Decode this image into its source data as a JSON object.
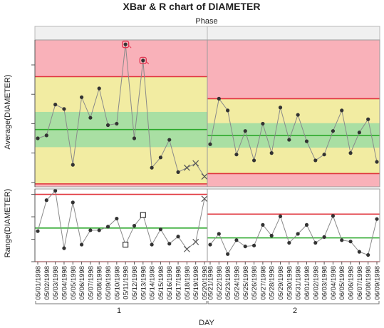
{
  "chart_data": {
    "type": "line",
    "title": "XBar & R chart of DIAMETER",
    "phase_label": "Phase",
    "xlabel": "DAY",
    "phases": [
      {
        "name": "1",
        "dates": [
          "05/01/1998",
          "05/02/1998",
          "05/03/1998",
          "05/04/1998",
          "05/05/1998",
          "05/06/1998",
          "05/07/1998",
          "05/08/1998",
          "05/09/1998",
          "05/10/1998",
          "05/11/1998",
          "05/12/1998",
          "05/13/1998",
          "05/14/1998",
          "05/15/1998",
          "05/16/1998",
          "05/17/1998",
          "05/18/1998",
          "05/19/1998",
          "05/20/1998"
        ],
        "xbar": [
          4.3,
          4.32,
          4.53,
          4.5,
          4.12,
          4.58,
          4.44,
          4.64,
          4.39,
          4.4,
          4.94,
          4.3,
          4.83,
          4.1,
          4.17,
          4.29,
          4.07,
          4.1,
          4.13,
          4.04
        ],
        "xbar_markers": [
          "dot",
          "dot",
          "dot",
          "dot",
          "dot",
          "dot",
          "dot",
          "dot",
          "dot",
          "dot",
          "flag",
          "dot",
          "flag",
          "dot",
          "dot",
          "dot",
          "dot",
          "x",
          "x",
          "x"
        ],
        "range": [
          0.68,
          1.37,
          1.58,
          0.3,
          1.32,
          0.38,
          0.7,
          0.7,
          0.78,
          0.96,
          0.38,
          0.8,
          1.04,
          0.38,
          0.72,
          0.4,
          0.56,
          0.28,
          0.44,
          1.4
        ],
        "range_markers": [
          "dot",
          "dot",
          "dot",
          "dot",
          "dot",
          "dot",
          "dot",
          "dot",
          "dot",
          "dot",
          "square",
          "dot",
          "square",
          "dot",
          "dot",
          "dot",
          "dot",
          "x",
          "x",
          "x"
        ],
        "xbar_limits": {
          "lcl": 3.99,
          "center": 4.36,
          "ucl": 4.72
        },
        "range_limits": {
          "lcl": 0,
          "center": 0.75,
          "ucl": 1.5
        }
      },
      {
        "name": "2",
        "dates": [
          "05/21/1998",
          "05/22/1998",
          "05/23/1998",
          "05/24/1998",
          "05/25/1998",
          "05/26/1998",
          "05/27/1998",
          "05/28/1998",
          "05/29/1998",
          "05/30/1998",
          "05/31/1998",
          "06/01/1998",
          "06/02/1998",
          "06/03/1998",
          "06/04/1998",
          "06/05/1998",
          "06/06/1998",
          "06/07/1998",
          "06/08/1998",
          "06/09/1998"
        ],
        "xbar": [
          4.26,
          4.57,
          4.49,
          4.19,
          4.35,
          4.15,
          4.4,
          4.2,
          4.51,
          4.29,
          4.46,
          4.28,
          4.15,
          4.19,
          4.35,
          4.49,
          4.2,
          4.34,
          4.43,
          4.14
        ],
        "xbar_markers": [
          "dot",
          "dot",
          "dot",
          "dot",
          "dot",
          "dot",
          "dot",
          "dot",
          "dot",
          "dot",
          "dot",
          "dot",
          "dot",
          "dot",
          "dot",
          "dot",
          "dot",
          "dot",
          "dot",
          "dot"
        ],
        "range": [
          0.38,
          0.62,
          0.17,
          0.48,
          0.34,
          0.36,
          0.82,
          0.58,
          1.01,
          0.42,
          0.62,
          0.82,
          0.42,
          0.55,
          1.02,
          0.48,
          0.45,
          0.22,
          0.15,
          0.95
        ],
        "range_markers": [
          "dot",
          "dot",
          "dot",
          "dot",
          "dot",
          "dot",
          "dot",
          "dot",
          "dot",
          "dot",
          "dot",
          "dot",
          "dot",
          "dot",
          "dot",
          "dot",
          "dot",
          "dot",
          "dot",
          "dot"
        ],
        "xbar_limits": {
          "lcl": 4.06,
          "center": 4.32,
          "ucl": 4.57
        },
        "range_limits": {
          "lcl": 0,
          "center": 0.53,
          "ucl": 1.06
        }
      }
    ],
    "xbar_panel": {
      "ylabel": "Average(DIAMETER)",
      "ylim": [
        3.97,
        4.97
      ],
      "ticks": [
        4.0,
        4.2,
        4.4,
        4.6,
        4.8
      ],
      "tick_labels": [
        "4.0",
        "4.2",
        "4.4",
        "4.6",
        "4.8"
      ]
    },
    "range_panel": {
      "ylabel": "Range(DIAMETER)",
      "ylim": [
        0,
        1.62
      ],
      "ticks": [
        0,
        0.5,
        1.0,
        1.5
      ],
      "tick_labels": [
        "0",
        "0.5",
        "1.0",
        "1.5"
      ]
    },
    "grid": false,
    "legend": "none",
    "colors": {
      "zone_outer": "#f9b1b9",
      "zone_middle": "#f2eca2",
      "zone_inner": "#a9dfa3",
      "limit_line": "#e0343c",
      "center_line": "#2aa82a",
      "series_line": "#8a8a8a",
      "marker": "#333333",
      "flag": "#e03450"
    }
  }
}
